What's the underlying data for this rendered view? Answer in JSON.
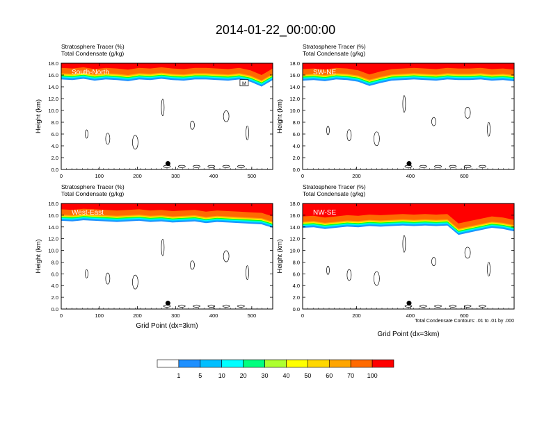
{
  "figure": {
    "title": "2014-01-22_00:00:00",
    "footnote": "Total Condensate Contours: .01 to .01 by .000",
    "colorbar": {
      "labels": [
        "1",
        "5",
        "10",
        "20",
        "30",
        "40",
        "50",
        "60",
        "70",
        "100"
      ],
      "colors": [
        "#ffffff",
        "#1e90ff",
        "#00bfff",
        "#00ffff",
        "#00ff7f",
        "#00ff00",
        "#adff2f",
        "#ffff00",
        "#ffd700",
        "#ffa500",
        "#ff6a00",
        "#ff0000"
      ]
    }
  },
  "chart_data": [
    {
      "type": "contour",
      "panel_label": "South-North",
      "title_line1": "Stratosphere Tracer   (%)",
      "title_line2": "Total Condensate   (g/kg)",
      "ylabel": "Height (km)",
      "xlabel": "",
      "xlim": [
        0,
        555
      ],
      "ylim": [
        0,
        18
      ],
      "xticks": [
        "0",
        "100",
        "200",
        "300",
        "400",
        "500"
      ],
      "yticks": [
        "0.0",
        "2.0",
        "4.0",
        "6.0",
        "8.0",
        "10.0",
        "12.0",
        "14.0",
        "16.0",
        "18.0"
      ],
      "marker": {
        "x": 280,
        "y": 1.0
      },
      "annotation": {
        "text": "M",
        "x": 480,
        "y": 14.5
      },
      "tracer_base_km": [
        15.6,
        15.5,
        15.7,
        15.4,
        15.6,
        15.5,
        15.3,
        15.6,
        15.5,
        15.7,
        15.5,
        15.4,
        15.6,
        15.6,
        15.5,
        15.4,
        15.6,
        15.2,
        14.4,
        15.5
      ]
    },
    {
      "type": "contour",
      "panel_label": "SW-NE",
      "title_line1": "Stratosphere Tracer   (%)",
      "title_line2": "Total Condensate   (g/kg)",
      "ylabel": "Height (km)",
      "xlabel": "",
      "xlim": [
        0,
        785
      ],
      "ylim": [
        0,
        18
      ],
      "xticks": [
        "0",
        "200",
        "400",
        "600"
      ],
      "yticks": [
        "0.0",
        "2.0",
        "4.0",
        "6.0",
        "8.0",
        "10.0",
        "12.0",
        "14.0",
        "16.0",
        "18.0"
      ],
      "marker": {
        "x": 395,
        "y": 1.0
      },
      "tracer_base_km": [
        15.4,
        15.5,
        15.3,
        15.6,
        15.5,
        15.2,
        14.5,
        15.0,
        15.4,
        15.5,
        15.6,
        15.5,
        15.4,
        15.6,
        15.5,
        15.5,
        15.6,
        15.4,
        15.5,
        15.3
      ]
    },
    {
      "type": "contour",
      "panel_label": "West-East",
      "title_line1": "Stratosphere Tracer   (%)",
      "title_line2": "Total Condensate   (g/kg)",
      "ylabel": "Height (km)",
      "xlabel": "Grid Point (dx=3km)",
      "xlim": [
        0,
        555
      ],
      "ylim": [
        0,
        18
      ],
      "xticks": [
        "0",
        "100",
        "200",
        "300",
        "400",
        "500"
      ],
      "yticks": [
        "0.0",
        "2.0",
        "4.0",
        "6.0",
        "8.0",
        "10.0",
        "12.0",
        "14.0",
        "16.0",
        "18.0"
      ],
      "marker": {
        "x": 280,
        "y": 1.0
      },
      "tracer_base_km": [
        15.4,
        15.3,
        15.5,
        15.4,
        15.3,
        15.2,
        15.3,
        15.4,
        15.2,
        15.3,
        15.1,
        15.2,
        15.3,
        15.0,
        15.2,
        15.1,
        15.0,
        14.9,
        14.8,
        14.2
      ]
    },
    {
      "type": "contour",
      "panel_label": "NW-SE",
      "title_line1": "Stratosphere Tracer   (%)",
      "title_line2": "Total Condensate   (g/kg)",
      "ylabel": "Height (km)",
      "xlabel": "Grid Point (dx=3km)",
      "xlim": [
        0,
        785
      ],
      "ylim": [
        0,
        18
      ],
      "xticks": [
        "0",
        "200",
        "400",
        "600"
      ],
      "yticks": [
        "0.0",
        "2.0",
        "4.0",
        "6.0",
        "8.0",
        "10.0",
        "12.0",
        "14.0",
        "16.0",
        "18.0"
      ],
      "marker": {
        "x": 395,
        "y": 1.0
      },
      "tracer_base_km": [
        14.2,
        14.3,
        14.0,
        14.2,
        14.4,
        14.3,
        14.5,
        14.4,
        14.5,
        14.6,
        14.5,
        14.6,
        14.5,
        14.6,
        13.0,
        13.4,
        13.8,
        14.2,
        14.0,
        13.6
      ]
    }
  ]
}
